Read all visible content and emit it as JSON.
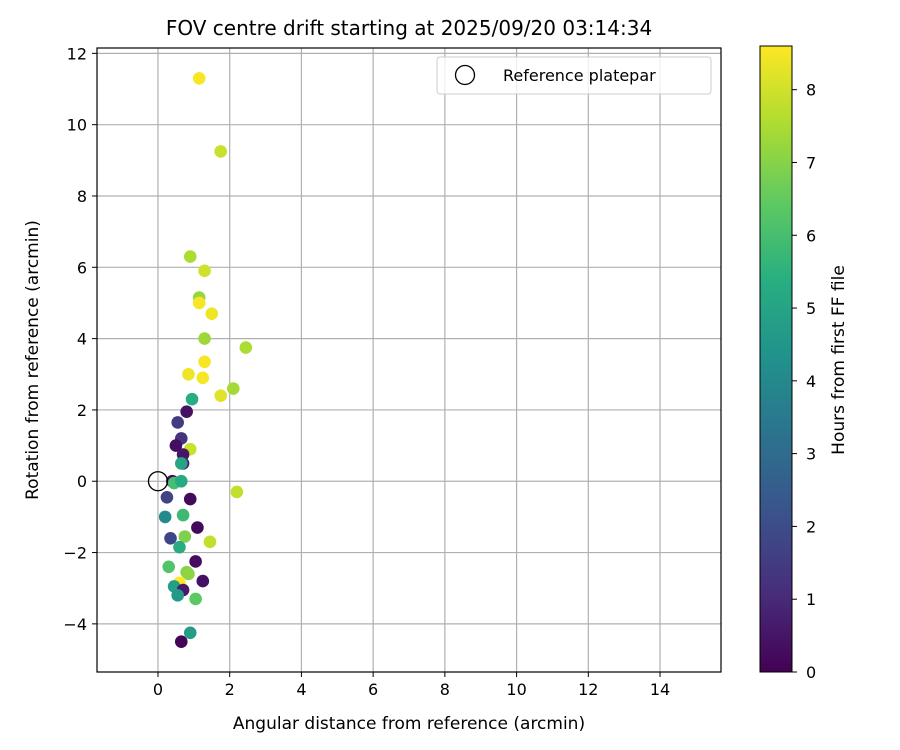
{
  "chart_data": {
    "type": "scatter",
    "title": "FOV centre drift starting at 2025/09/20 03:14:34",
    "xlabel": "Angular distance from reference (arcmin)",
    "ylabel": "Rotation from reference (arcmin)",
    "xlim": [
      -1.7,
      15.7
    ],
    "ylim": [
      -5.35,
      12.15
    ],
    "xticks": [
      0,
      2,
      4,
      6,
      8,
      10,
      12,
      14
    ],
    "yticks": [
      -4,
      -2,
      0,
      2,
      4,
      6,
      8,
      10,
      12
    ],
    "grid": true,
    "legend": {
      "label": "Reference platepar",
      "placement": "top-right"
    },
    "reference_point": {
      "x": 0,
      "y": 0
    },
    "colorbar": {
      "label": "Hours from first FF file",
      "range": [
        0,
        8.6
      ],
      "ticks": [
        0,
        1,
        2,
        3,
        4,
        5,
        6,
        7,
        8
      ],
      "colormap": "viridis"
    },
    "points": [
      {
        "x": 1.15,
        "y": 11.3,
        "c": 8.5
      },
      {
        "x": 1.75,
        "y": 9.25,
        "c": 7.9
      },
      {
        "x": 0.9,
        "y": 6.3,
        "c": 7.5
      },
      {
        "x": 1.3,
        "y": 5.9,
        "c": 8.0
      },
      {
        "x": 1.15,
        "y": 5.15,
        "c": 7.2
      },
      {
        "x": 1.15,
        "y": 5.0,
        "c": 8.5
      },
      {
        "x": 1.5,
        "y": 4.7,
        "c": 8.4
      },
      {
        "x": 1.3,
        "y": 4.0,
        "c": 7.3
      },
      {
        "x": 2.45,
        "y": 3.75,
        "c": 7.5
      },
      {
        "x": 1.3,
        "y": 3.35,
        "c": 8.5
      },
      {
        "x": 0.85,
        "y": 3.0,
        "c": 8.4
      },
      {
        "x": 1.25,
        "y": 2.9,
        "c": 8.5
      },
      {
        "x": 2.1,
        "y": 2.6,
        "c": 7.4
      },
      {
        "x": 1.75,
        "y": 2.4,
        "c": 8.2
      },
      {
        "x": 0.95,
        "y": 2.3,
        "c": 5.3
      },
      {
        "x": 0.8,
        "y": 1.95,
        "c": 0.4
      },
      {
        "x": 0.55,
        "y": 1.65,
        "c": 1.5
      },
      {
        "x": 0.65,
        "y": 1.2,
        "c": 1.3
      },
      {
        "x": 0.5,
        "y": 1.0,
        "c": 0.3
      },
      {
        "x": 0.9,
        "y": 0.9,
        "c": 7.9
      },
      {
        "x": 0.7,
        "y": 0.75,
        "c": 0.5
      },
      {
        "x": 0.7,
        "y": 0.5,
        "c": 0.7
      },
      {
        "x": 0.65,
        "y": 0.5,
        "c": 5.0
      },
      {
        "x": 0.4,
        "y": 0.0,
        "c": 0.3
      },
      {
        "x": 0.45,
        "y": -0.05,
        "c": 6.0
      },
      {
        "x": 0.65,
        "y": 0.0,
        "c": 5.2
      },
      {
        "x": 0.25,
        "y": -0.45,
        "c": 1.7
      },
      {
        "x": 0.9,
        "y": -0.5,
        "c": 0.2
      },
      {
        "x": 2.2,
        "y": -0.3,
        "c": 7.8
      },
      {
        "x": 0.2,
        "y": -1.0,
        "c": 4.1
      },
      {
        "x": 0.7,
        "y": -0.95,
        "c": 5.8
      },
      {
        "x": 1.1,
        "y": -1.3,
        "c": 0.2
      },
      {
        "x": 0.35,
        "y": -1.6,
        "c": 1.8
      },
      {
        "x": 0.75,
        "y": -1.55,
        "c": 6.9
      },
      {
        "x": 1.45,
        "y": -1.7,
        "c": 7.8
      },
      {
        "x": 0.6,
        "y": -1.85,
        "c": 5.3
      },
      {
        "x": 1.05,
        "y": -2.25,
        "c": 0.3
      },
      {
        "x": 0.3,
        "y": -2.4,
        "c": 6.2
      },
      {
        "x": 0.8,
        "y": -2.55,
        "c": 7.0
      },
      {
        "x": 0.85,
        "y": -2.6,
        "c": 7.1
      },
      {
        "x": 1.25,
        "y": -2.8,
        "c": 0.4
      },
      {
        "x": 0.6,
        "y": -2.85,
        "c": 8.6
      },
      {
        "x": 0.45,
        "y": -2.95,
        "c": 4.8
      },
      {
        "x": 0.7,
        "y": -3.05,
        "c": 0.6
      },
      {
        "x": 0.55,
        "y": -3.2,
        "c": 4.6
      },
      {
        "x": 1.05,
        "y": -3.3,
        "c": 6.4
      },
      {
        "x": 0.9,
        "y": -4.25,
        "c": 4.7
      },
      {
        "x": 0.65,
        "y": -4.5,
        "c": 0.1
      }
    ]
  }
}
